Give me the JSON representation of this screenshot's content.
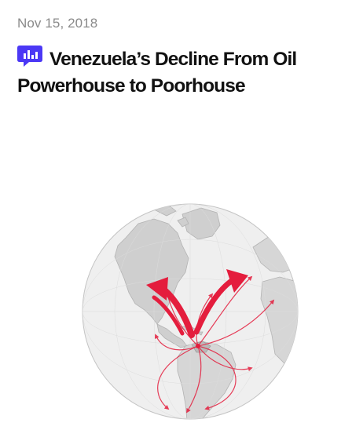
{
  "article": {
    "date": "Nov 15, 2018",
    "headline": "Venezuela’s Decline From Oil Powerhouse to Poorhouse",
    "badge_icon": "bar-chart-speech-bubble-icon",
    "badge_color": "#4b38f5",
    "graphic": {
      "icon": "globe-trade-flows-map",
      "land_color": "#cfcfcf",
      "ocean_color": "#efefef",
      "flow_color": "#e41d3d"
    }
  }
}
